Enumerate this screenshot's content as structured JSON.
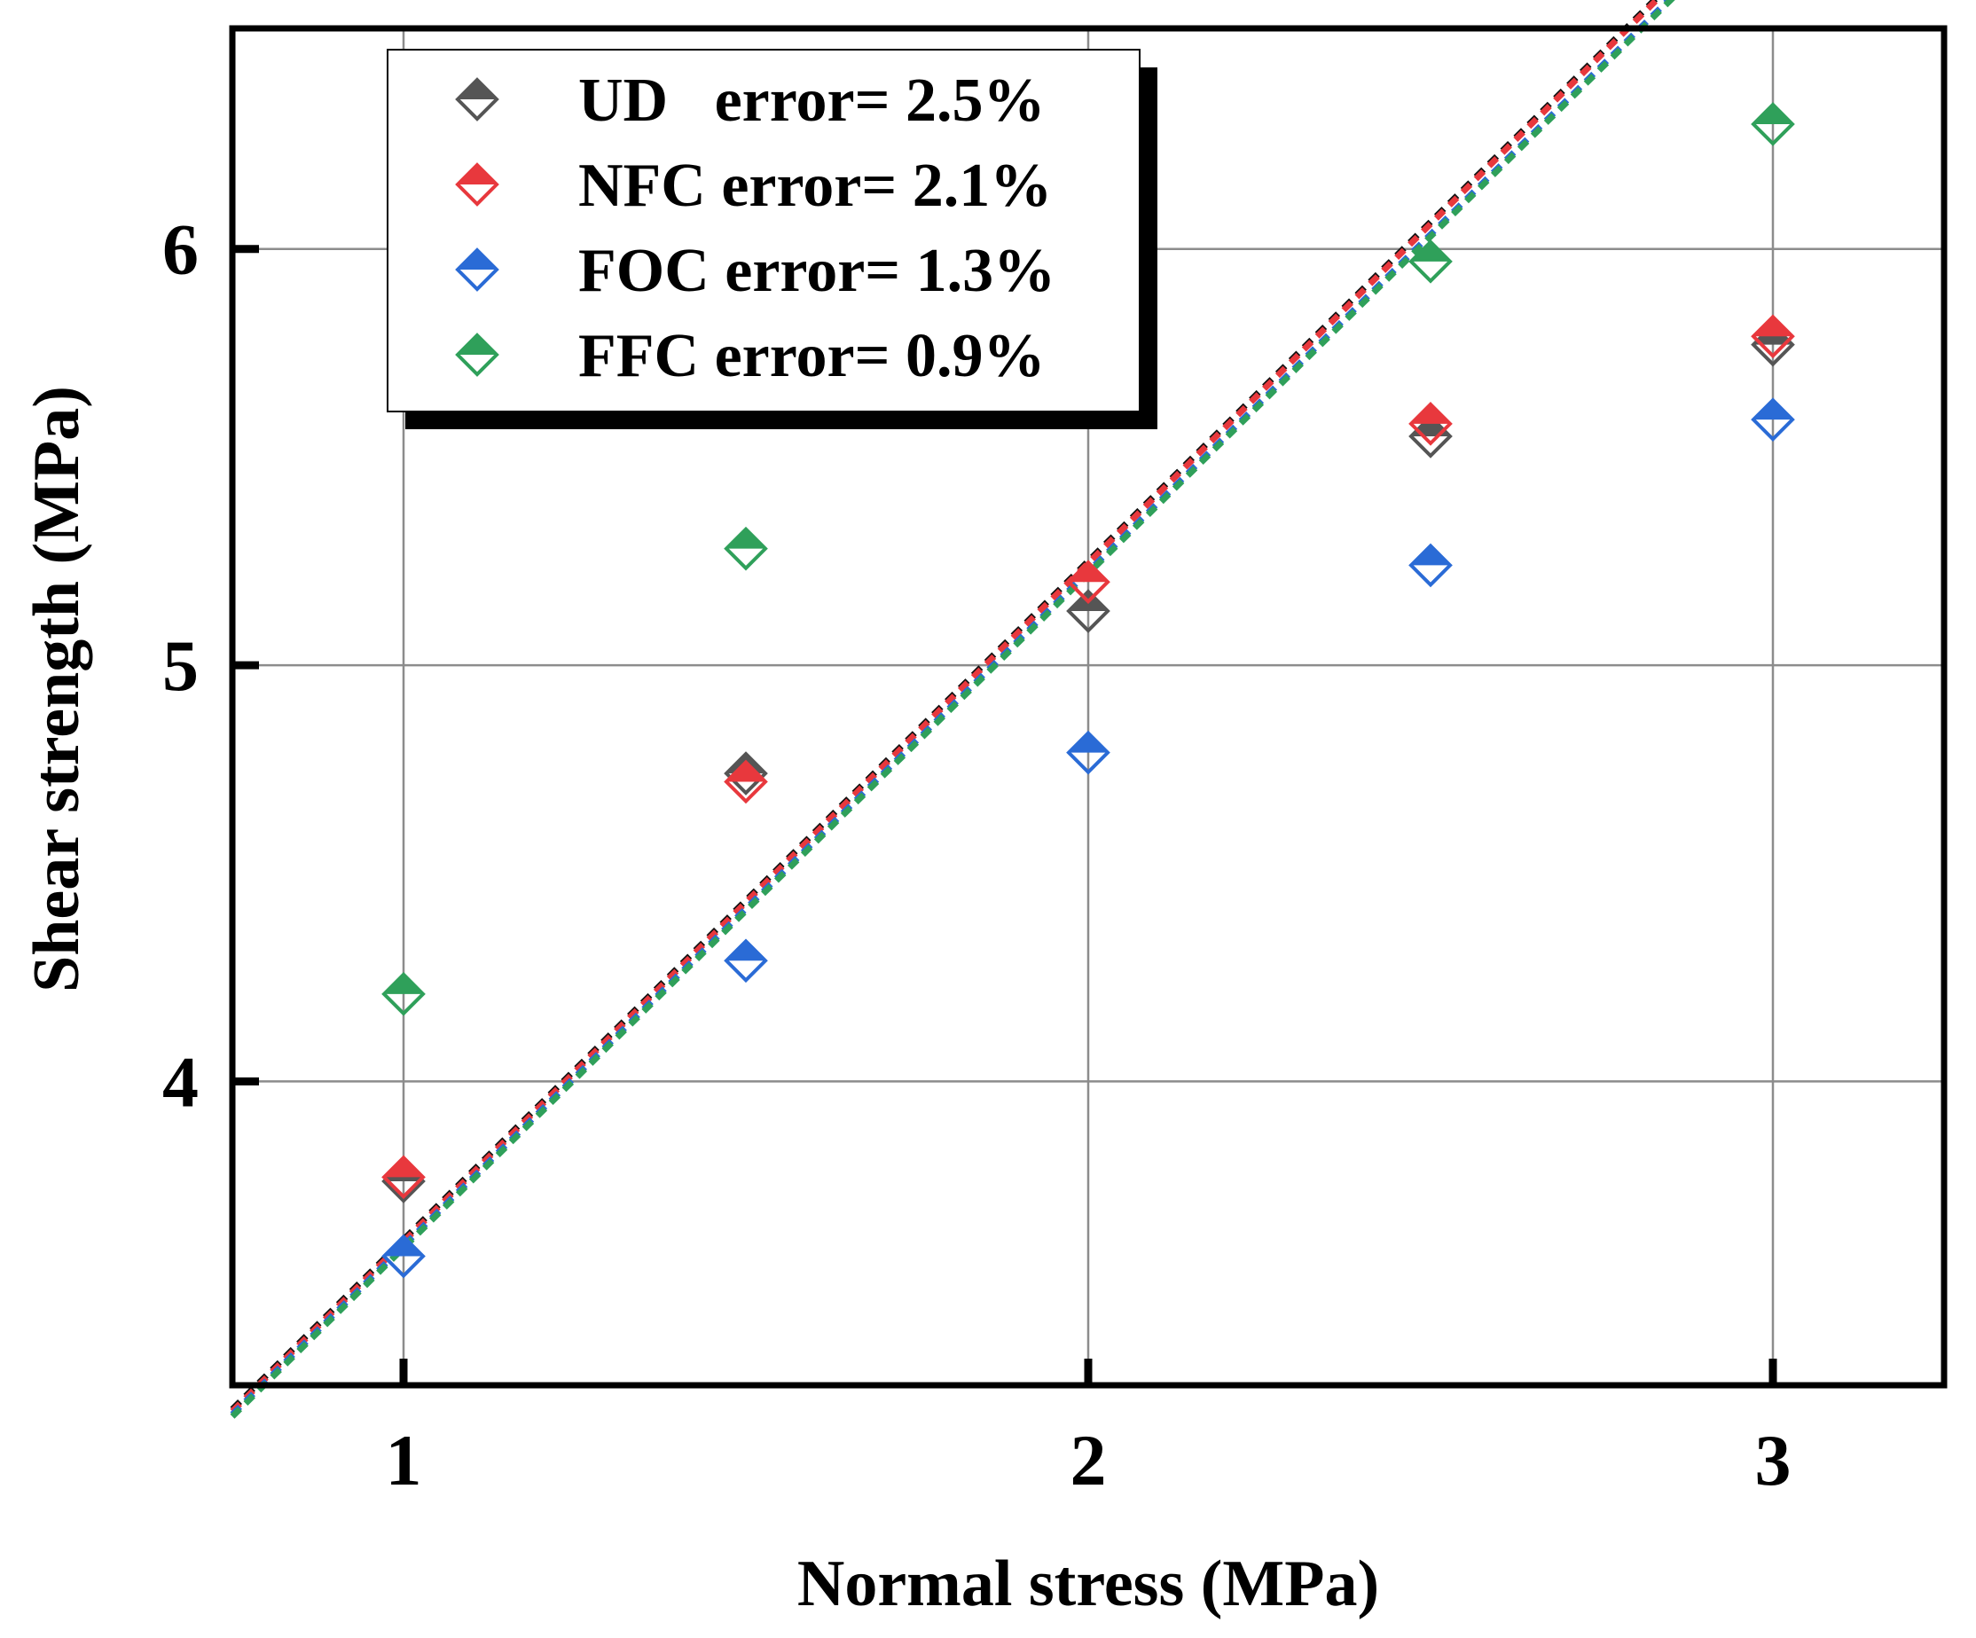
{
  "chart_data": {
    "type": "scatter",
    "title": "",
    "xlabel": "Normal stress (MPa)",
    "ylabel": "Shear strength (MPa)",
    "xlim": [
      0.75,
      3.25
    ],
    "ylim": [
      3.27,
      6.53
    ],
    "xticks": [
      1,
      2,
      3
    ],
    "yticks": [
      4,
      5,
      6
    ],
    "grid": true,
    "legend_position": "top-left",
    "x": [
      1,
      1.5,
      2,
      2.5,
      3
    ],
    "series": [
      {
        "name": "UD",
        "legend": "UD   error= 2.5%",
        "color": "#555555",
        "values": [
          3.76,
          4.74,
          5.13,
          5.55,
          5.77
        ],
        "fit": {
          "slope": 1.63,
          "intercept": 1.99
        }
      },
      {
        "name": "NFC",
        "legend": "NFC error= 2.1%",
        "color": "#e8383d",
        "values": [
          3.77,
          4.72,
          5.2,
          5.58,
          5.79
        ],
        "fit": {
          "slope": 1.63,
          "intercept": 1.985
        }
      },
      {
        "name": "FOC",
        "legend": "FOC error= 1.3%",
        "color": "#2a6bd6",
        "values": [
          3.58,
          4.29,
          4.79,
          5.24,
          5.59
        ],
        "fit": {
          "slope": 1.62,
          "intercept": 1.985
        }
      },
      {
        "name": "FFC",
        "legend": "FFC error= 0.9%",
        "color": "#2fa05a",
        "values": [
          4.21,
          5.28,
          null,
          5.97,
          6.3
        ],
        "fit": {
          "slope": 1.62,
          "intercept": 1.98
        }
      }
    ]
  }
}
